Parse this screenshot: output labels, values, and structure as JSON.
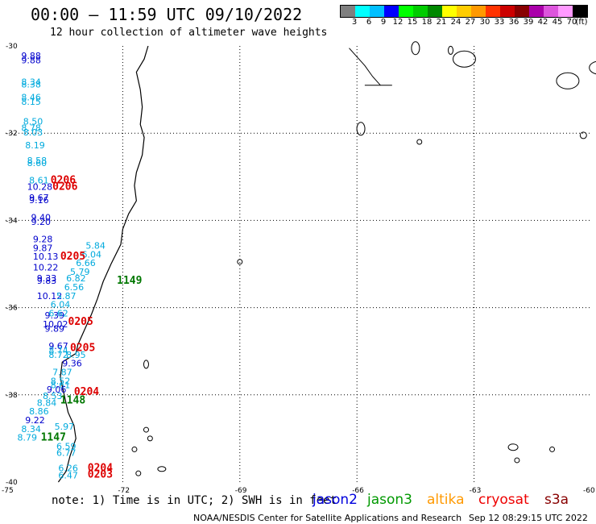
{
  "title": "00:00 – 11:59 UTC 09/10/2022",
  "subtitle": "12 hour collection of altimeter wave heights",
  "colorbar": {
    "colors": [
      "#7f7f7f",
      "#00ffff",
      "#00bfff",
      "#0000ff",
      "#00ff00",
      "#00cc00",
      "#008800",
      "#ffff00",
      "#ffcc00",
      "#ff9900",
      "#ff3300",
      "#cc0000",
      "#880000",
      "#aa00aa",
      "#dd55dd",
      "#ff99ff",
      "#000000"
    ],
    "labels": [
      "3",
      "6",
      "9",
      "12",
      "15",
      "18",
      "21",
      "24",
      "27",
      "30",
      "33",
      "36",
      "39",
      "42",
      "45",
      "70",
      "(ft)"
    ]
  },
  "axes": {
    "lat_labels": [
      "-30",
      "-32",
      "-34",
      "-36",
      "-38",
      "-40"
    ],
    "lon_labels": [
      "-75",
      "-72",
      "-69",
      "-66",
      "-63",
      "-60"
    ]
  },
  "observations": [
    {
      "text": "9.88",
      "color": "#0000cc",
      "lon": -74.6,
      "lat": -30.3
    },
    {
      "text": "9.88",
      "color": "#0000cc",
      "lon": -74.6,
      "lat": -30.4
    },
    {
      "text": "8.34",
      "color": "#00aadd",
      "lon": -74.6,
      "lat": -30.9
    },
    {
      "text": "8.38",
      "color": "#00aadd",
      "lon": -74.6,
      "lat": -30.95
    },
    {
      "text": "8.46",
      "color": "#00aadd",
      "lon": -74.6,
      "lat": -31.25
    },
    {
      "text": "8.15",
      "color": "#00aadd",
      "lon": -74.6,
      "lat": -31.35
    },
    {
      "text": "8.50",
      "color": "#00aadd",
      "lon": -74.55,
      "lat": -31.8
    },
    {
      "text": "8.78",
      "color": "#00aadd",
      "lon": -74.6,
      "lat": -31.95
    },
    {
      "text": "8.03",
      "color": "#00aadd",
      "lon": -74.55,
      "lat": -32.05
    },
    {
      "text": "8.19",
      "color": "#00aadd",
      "lon": -74.5,
      "lat": -32.35
    },
    {
      "text": "8.58",
      "color": "#00aadd",
      "lon": -74.45,
      "lat": -32.7
    },
    {
      "text": "8.60",
      "color": "#00aadd",
      "lon": -74.45,
      "lat": -32.75
    },
    {
      "text": "8.61",
      "color": "#00aadd",
      "lon": -74.4,
      "lat": -33.15
    },
    {
      "text": "10.28",
      "color": "#0000cc",
      "lon": -74.45,
      "lat": -33.3
    },
    {
      "text": "9.67",
      "color": "#0000cc",
      "lon": -74.4,
      "lat": -33.55
    },
    {
      "text": "9.16",
      "color": "#0000cc",
      "lon": -74.4,
      "lat": -33.6
    },
    {
      "text": "9.40",
      "color": "#0000cc",
      "lon": -74.35,
      "lat": -34.0
    },
    {
      "text": "9.20",
      "color": "#0000cc",
      "lon": -74.35,
      "lat": -34.1
    },
    {
      "text": "9.28",
      "color": "#0000cc",
      "lon": -74.3,
      "lat": -34.5
    },
    {
      "text": "9.87",
      "color": "#0000cc",
      "lon": -74.3,
      "lat": -34.7
    },
    {
      "text": "10.13",
      "color": "#0000cc",
      "lon": -74.3,
      "lat": -34.9
    },
    {
      "text": "10.22",
      "color": "#0000cc",
      "lon": -74.3,
      "lat": -35.15
    },
    {
      "text": "9.33",
      "color": "#0000cc",
      "lon": -74.2,
      "lat": -35.4
    },
    {
      "text": "9.83",
      "color": "#0000cc",
      "lon": -74.2,
      "lat": -35.45
    },
    {
      "text": "10.12",
      "color": "#0000cc",
      "lon": -74.2,
      "lat": -35.8
    },
    {
      "text": "9.39",
      "color": "#0000cc",
      "lon": -74.0,
      "lat": -36.25
    },
    {
      "text": "10.02",
      "color": "#0000cc",
      "lon": -74.05,
      "lat": -36.45
    },
    {
      "text": "9.89",
      "color": "#0000cc",
      "lon": -74.0,
      "lat": -36.55
    },
    {
      "text": "9.67",
      "color": "#0000cc",
      "lon": -73.9,
      "lat": -36.95
    },
    {
      "text": "8.74",
      "color": "#00aadd",
      "lon": -73.9,
      "lat": -37.05
    },
    {
      "text": "8.72",
      "color": "#00aadd",
      "lon": -73.9,
      "lat": -37.15
    },
    {
      "text": "8.95",
      "color": "#00aadd",
      "lon": -73.45,
      "lat": -37.15
    },
    {
      "text": "9.36",
      "color": "#0000cc",
      "lon": -73.55,
      "lat": -37.35
    },
    {
      "text": "7.87",
      "color": "#00aadd",
      "lon": -73.8,
      "lat": -37.55
    },
    {
      "text": "8.52",
      "color": "#00aadd",
      "lon": -73.85,
      "lat": -37.75
    },
    {
      "text": "8.61",
      "color": "#00aadd",
      "lon": -73.85,
      "lat": -37.85
    },
    {
      "text": "9.06",
      "color": "#0000cc",
      "lon": -73.95,
      "lat": -37.95
    },
    {
      "text": "8.53",
      "color": "#00aadd",
      "lon": -74.05,
      "lat": -38.1
    },
    {
      "text": "8.84",
      "color": "#00aadd",
      "lon": -74.2,
      "lat": -38.25
    },
    {
      "text": "8.86",
      "color": "#00aadd",
      "lon": -74.4,
      "lat": -38.45
    },
    {
      "text": "9.22",
      "color": "#0000cc",
      "lon": -74.5,
      "lat": -38.65
    },
    {
      "text": "8.34",
      "color": "#00aadd",
      "lon": -74.6,
      "lat": -38.85
    },
    {
      "text": "8.79",
      "color": "#00aadd",
      "lon": -74.7,
      "lat": -39.05
    },
    {
      "text": "5.97",
      "color": "#00aadd",
      "lon": -73.75,
      "lat": -38.8
    },
    {
      "text": "6.59",
      "color": "#00aadd",
      "lon": -73.7,
      "lat": -39.25
    },
    {
      "text": "6.77",
      "color": "#00aadd",
      "lon": -73.7,
      "lat": -39.4
    },
    {
      "text": "6.26",
      "color": "#00aadd",
      "lon": -73.65,
      "lat": -39.75
    },
    {
      "text": "6.47",
      "color": "#00aadd",
      "lon": -73.65,
      "lat": -39.92
    },
    {
      "text": "5.84",
      "color": "#00aadd",
      "lon": -72.95,
      "lat": -34.65
    },
    {
      "text": "6.04",
      "color": "#00aadd",
      "lon": -73.05,
      "lat": -34.85
    },
    {
      "text": "6.66",
      "color": "#00aadd",
      "lon": -73.2,
      "lat": -35.05
    },
    {
      "text": "5.79",
      "color": "#00aadd",
      "lon": -73.35,
      "lat": -35.25
    },
    {
      "text": "6.82",
      "color": "#00aadd",
      "lon": -73.45,
      "lat": -35.4
    },
    {
      "text": "6.56",
      "color": "#00aadd",
      "lon": -73.5,
      "lat": -35.6
    },
    {
      "text": "5.87",
      "color": "#00aadd",
      "lon": -73.7,
      "lat": -35.8
    },
    {
      "text": "6.04",
      "color": "#00aadd",
      "lon": -73.85,
      "lat": -36.0
    },
    {
      "text": "6.62",
      "color": "#00aadd",
      "lon": -73.9,
      "lat": -36.2
    }
  ],
  "timestamps": [
    {
      "text": "0206",
      "color": "#dd0000",
      "lon": -73.85,
      "lat": -33.15
    },
    {
      "text": "0206",
      "color": "#dd0000",
      "lon": -73.8,
      "lat": -33.3
    },
    {
      "text": "0205",
      "color": "#dd0000",
      "lon": -73.6,
      "lat": -34.9
    },
    {
      "text": "1149",
      "color": "#007700",
      "lon": -72.15,
      "lat": -35.45
    },
    {
      "text": "0205",
      "color": "#dd0000",
      "lon": -73.4,
      "lat": -36.4
    },
    {
      "text": "0205",
      "color": "#dd0000",
      "lon": -73.35,
      "lat": -37.0
    },
    {
      "text": "0204",
      "color": "#dd0000",
      "lon": -73.25,
      "lat": -38.0
    },
    {
      "text": "1148",
      "color": "#007700",
      "lon": -73.6,
      "lat": -38.2
    },
    {
      "text": "1147",
      "color": "#007700",
      "lon": -74.1,
      "lat": -39.05
    },
    {
      "text": "0204",
      "color": "#dd0000",
      "lon": -72.9,
      "lat": -39.75
    },
    {
      "text": "0203",
      "color": "#dd0000",
      "lon": -72.9,
      "lat": -39.9
    }
  ],
  "footer": {
    "note": "note: 1) Time is in UTC; 2) SWH is in feet",
    "satellites": [
      {
        "name": "jason2",
        "color": "#0000dd"
      },
      {
        "name": "jason3",
        "color": "#009900"
      },
      {
        "name": "altika",
        "color": "#ff9900"
      },
      {
        "name": "cryosat",
        "color": "#ee0000"
      },
      {
        "name": "s3a",
        "color": "#880000"
      }
    ],
    "credit": "NOAA/NESDIS Center for Satellite Applications and Research",
    "generated": "Sep 12 08:29:15 UTC 2022"
  }
}
